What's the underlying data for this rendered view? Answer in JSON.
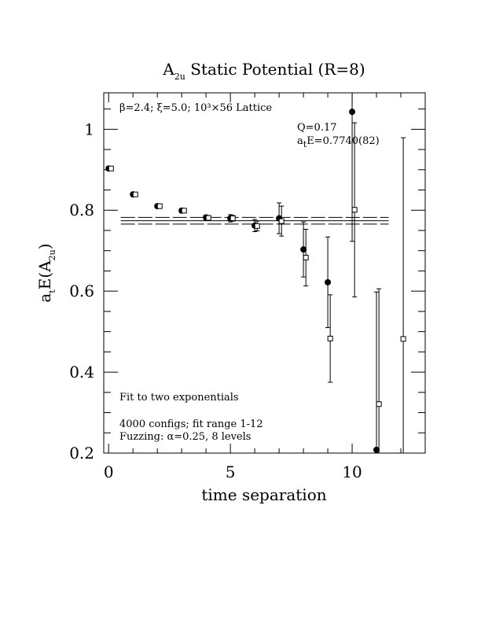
{
  "chart_data": {
    "type": "scatter",
    "title": "A",
    "title_sub": "2u",
    "title_rest": " Static Potential (R=8)",
    "xlabel": "time separation",
    "ylabel_main": "a",
    "ylabel_sub_t": "t",
    "ylabel_mid": "E(A",
    "ylabel_sub_2u": "2u",
    "ylabel_close": ")",
    "xlim": [
      -0.2,
      13.0
    ],
    "ylim": [
      0.2,
      1.09
    ],
    "x_ticks": [
      0,
      5,
      10
    ],
    "x_tick_labels": [
      "0",
      "5",
      "10"
    ],
    "y_ticks": [
      0.2,
      0.4,
      0.6,
      0.8,
      1.0
    ],
    "y_tick_labels": [
      "0.2",
      "0.4",
      "0.6",
      "0.8",
      "1"
    ],
    "grid": false,
    "annotations": {
      "lattice_line": "β=2.4; ξ=5.0; 10³×56 Lattice",
      "q_line": "Q=0.17",
      "energy_prefix": "a",
      "energy_sub": "t",
      "energy_rest": "E=0.7740(82)",
      "fit_line": "Fit to two exponentials",
      "configs_line": "4000 configs; fit range 1-12",
      "fuzzing_line": "Fuzzing: α=0.25, 8 levels"
    },
    "fit": {
      "x_range": [
        0.5,
        11.5
      ],
      "center": 0.774,
      "error": 0.0082
    },
    "series": [
      {
        "marker": "filled-circle",
        "points": [
          {
            "x": 0,
            "y": 0.903,
            "err": 0.003
          },
          {
            "x": 1,
            "y": 0.839,
            "err": 0.003
          },
          {
            "x": 2,
            "y": 0.81,
            "err": 0.004
          },
          {
            "x": 3,
            "y": 0.799,
            "err": 0.005
          },
          {
            "x": 4,
            "y": 0.782,
            "err": 0.006
          },
          {
            "x": 5,
            "y": 0.78,
            "err": 0.009
          },
          {
            "x": 6,
            "y": 0.762,
            "err": 0.015
          },
          {
            "x": 7,
            "y": 0.78,
            "err": 0.038
          },
          {
            "x": 8,
            "y": 0.703,
            "err": 0.068
          },
          {
            "x": 9,
            "y": 0.622,
            "err": 0.112
          },
          {
            "x": 10,
            "y": 1.043,
            "err": 0.32
          },
          {
            "x": 11,
            "y": 0.208,
            "err": 0.39
          }
        ]
      },
      {
        "marker": "open-square",
        "points": [
          {
            "x": 0.1,
            "y": 0.903,
            "err": 0.003
          },
          {
            "x": 1.1,
            "y": 0.839,
            "err": 0.003
          },
          {
            "x": 2.1,
            "y": 0.81,
            "err": 0.004
          },
          {
            "x": 3.1,
            "y": 0.799,
            "err": 0.004
          },
          {
            "x": 4.1,
            "y": 0.781,
            "err": 0.005
          },
          {
            "x": 5.1,
            "y": 0.78,
            "err": 0.007
          },
          {
            "x": 6.1,
            "y": 0.761,
            "err": 0.012
          },
          {
            "x": 7.1,
            "y": 0.773,
            "err": 0.037
          },
          {
            "x": 8.1,
            "y": 0.683,
            "err": 0.07
          },
          {
            "x": 9.1,
            "y": 0.483,
            "err": 0.108
          },
          {
            "x": 10.1,
            "y": 0.801,
            "err": 0.215
          },
          {
            "x": 11.1,
            "y": 0.321,
            "err": 0.285
          },
          {
            "x": 12.1,
            "y": 0.482,
            "err": 0.497
          }
        ]
      }
    ]
  }
}
